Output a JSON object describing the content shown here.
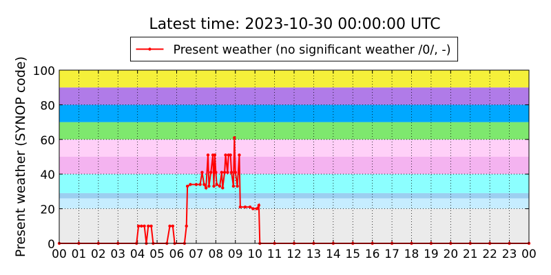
{
  "chart_data": {
    "type": "line",
    "title": "Latest time: 2023-10-30 00:00:00 UTC",
    "y_label": "Present weather (SYNOP code)",
    "legend_position": "upper center",
    "grid": true,
    "ylim": [
      0,
      100
    ],
    "yticks": [
      0,
      20,
      40,
      60,
      80,
      100
    ],
    "xlim": [
      0,
      24
    ],
    "xticks": [
      {
        "value": 0,
        "label": "00"
      },
      {
        "value": 1,
        "label": "01"
      },
      {
        "value": 2,
        "label": "02"
      },
      {
        "value": 3,
        "label": "03"
      },
      {
        "value": 4,
        "label": "04"
      },
      {
        "value": 5,
        "label": "05"
      },
      {
        "value": 6,
        "label": "06"
      },
      {
        "value": 7,
        "label": "07"
      },
      {
        "value": 8,
        "label": "08"
      },
      {
        "value": 9,
        "label": "09"
      },
      {
        "value": 10,
        "label": "10"
      },
      {
        "value": 11,
        "label": "11"
      },
      {
        "value": 12,
        "label": "12"
      },
      {
        "value": 13,
        "label": "13"
      },
      {
        "value": 14,
        "label": "14"
      },
      {
        "value": 15,
        "label": "15"
      },
      {
        "value": 16,
        "label": "16"
      },
      {
        "value": 17,
        "label": "17"
      },
      {
        "value": 18,
        "label": "18"
      },
      {
        "value": 19,
        "label": "19"
      },
      {
        "value": 20,
        "label": "20"
      },
      {
        "value": 21,
        "label": "21"
      },
      {
        "value": 22,
        "label": "22"
      },
      {
        "value": 23,
        "label": "23"
      },
      {
        "value": 24,
        "label": "00"
      }
    ],
    "bands": [
      {
        "from": 0,
        "to": 20,
        "color": "#ebebeb"
      },
      {
        "from": 20,
        "to": 26,
        "color": "#c6edff"
      },
      {
        "from": 26,
        "to": 29,
        "color": "#9ccff0"
      },
      {
        "from": 29,
        "to": 40,
        "color": "#8cffff"
      },
      {
        "from": 40,
        "to": 50,
        "color": "#f4b3f0"
      },
      {
        "from": 50,
        "to": 60,
        "color": "#ffd0f8"
      },
      {
        "from": 60,
        "to": 70,
        "color": "#7ee86e"
      },
      {
        "from": 70,
        "to": 80,
        "color": "#00a8ff"
      },
      {
        "from": 80,
        "to": 90,
        "color": "#b07be8"
      },
      {
        "from": 90,
        "to": 100,
        "color": "#f5f03a"
      }
    ],
    "x": [
      0,
      1,
      2,
      3,
      3.95,
      4.05,
      4.2,
      4.35,
      4.45,
      4.55,
      4.7,
      4.8,
      5.5,
      5.65,
      5.8,
      5.9,
      6.4,
      6.5,
      6.55,
      6.7,
      7.0,
      7.2,
      7.3,
      7.4,
      7.5,
      7.6,
      7.65,
      7.75,
      7.85,
      7.9,
      7.95,
      8.0,
      8.05,
      8.2,
      8.3,
      8.35,
      8.45,
      8.5,
      8.6,
      8.65,
      8.75,
      8.8,
      8.9,
      8.95,
      9.0,
      9.1,
      9.2,
      9.25,
      9.5,
      9.75,
      9.9,
      10.1,
      10.2,
      10.25,
      11,
      12,
      13,
      14,
      15,
      16,
      17,
      18,
      19,
      20,
      21,
      22,
      23,
      24
    ],
    "series": [
      {
        "name": "Present weather (no significant weather /0/, -)",
        "color": "#ff0000",
        "values": [
          0,
          0,
          0,
          0,
          0,
          10,
          10,
          10,
          0,
          10,
          10,
          0,
          0,
          10,
          10,
          0,
          0,
          10,
          33,
          34,
          34,
          34,
          41,
          34,
          32,
          51,
          33,
          41,
          51,
          33,
          51,
          41,
          34,
          33,
          41,
          32,
          41,
          51,
          41,
          51,
          51,
          41,
          33,
          61,
          41,
          33,
          51,
          21,
          21,
          21,
          20,
          20,
          22,
          0,
          0,
          0,
          0,
          0,
          0,
          0,
          0,
          0,
          0,
          0,
          0,
          0,
          0,
          0
        ]
      }
    ]
  }
}
